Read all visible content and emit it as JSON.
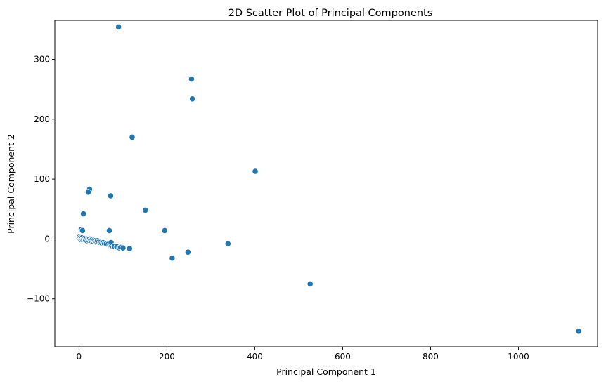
{
  "chart_data": {
    "type": "scatter",
    "title": "2D Scatter Plot of Principal Components",
    "xlabel": "Principal Component 1",
    "ylabel": "Principal Component 2",
    "xlim": [
      -55,
      1180
    ],
    "ylim": [
      -180,
      365
    ],
    "xticks": [
      0,
      200,
      400,
      600,
      800,
      1000
    ],
    "xtick_labels": [
      "0",
      "200",
      "400",
      "600",
      "800",
      "1000"
    ],
    "yticks": [
      -100,
      0,
      100,
      200,
      300
    ],
    "ytick_labels": [
      "−100",
      "0",
      "100",
      "200",
      "300"
    ],
    "grid": false,
    "legend": false,
    "marker_color": "#1f77b4",
    "marker_edge": "#ffffff",
    "series": [
      {
        "x": [
          90,
          256,
          258,
          121,
          401,
          24,
          21,
          72,
          10,
          151,
          195,
          69,
          5,
          8,
          339,
          248,
          212,
          526,
          1137,
          0,
          1,
          2,
          3,
          4,
          5,
          6,
          7,
          8,
          10,
          12,
          14,
          15,
          17,
          18,
          20,
          22,
          24,
          26,
          28,
          30,
          32,
          34,
          36,
          38,
          40,
          42,
          45,
          48,
          52,
          55,
          58,
          62,
          66,
          70,
          74,
          73,
          80,
          86,
          92,
          95,
          100,
          115
        ],
        "y": [
          354,
          267,
          234,
          170,
          113,
          83,
          78,
          72,
          42,
          48,
          14,
          14,
          16,
          14,
          -8,
          -22,
          -32,
          -75,
          -154,
          1,
          3,
          0,
          2,
          -1,
          1,
          0,
          2,
          -1,
          0,
          1,
          -1,
          -2,
          0,
          -3,
          -1,
          -2,
          0,
          -2,
          -3,
          -1,
          -4,
          -2,
          -3,
          -5,
          -4,
          -3,
          -5,
          -6,
          -7,
          -6,
          -8,
          -8,
          -9,
          -10,
          -11,
          -6,
          -12,
          -13,
          -15,
          -14,
          -15,
          -16
        ]
      }
    ]
  }
}
